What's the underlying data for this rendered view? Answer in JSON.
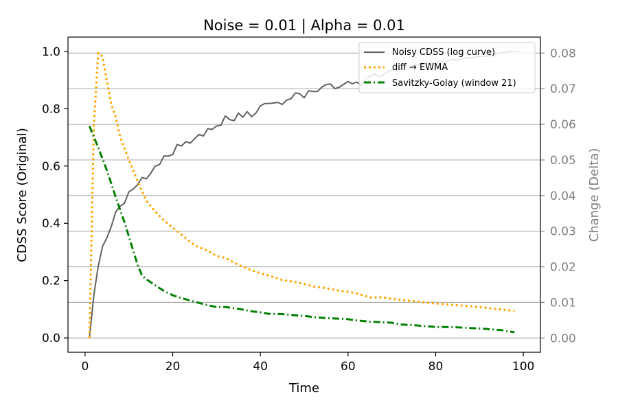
{
  "chart_data": {
    "type": "line",
    "title": "Noise = 0.01 | Alpha = 0.01",
    "xlabel": "Time",
    "ylabel_left": "CDSS Score (Original)",
    "ylabel_right": "Change (Delta)",
    "xlim": [
      -3.9,
      103.9
    ],
    "ylim_left": [
      -0.05,
      1.05
    ],
    "ylim_right": [
      -0.004,
      0.0845
    ],
    "xticks": [
      0,
      20,
      40,
      60,
      80,
      100
    ],
    "yticks_left": [
      0.0,
      0.2,
      0.4,
      0.6,
      0.8,
      1.0
    ],
    "yticks_right": [
      0.0,
      0.01,
      0.02,
      0.03,
      0.04,
      0.05,
      0.06,
      0.07,
      0.08
    ],
    "grid": "horizontal lines at right-axis ticks",
    "legend_position": "top-right",
    "colors": {
      "left_axis": "#000000",
      "right_axis": "#808080"
    },
    "series": [
      {
        "name": "Noisy CDSS (log curve)",
        "axis": "left",
        "style": "solid",
        "color": "#606060",
        "x": [
          1,
          2,
          3,
          4,
          5,
          6,
          7,
          8,
          9,
          10,
          11,
          12,
          13,
          14,
          15,
          16,
          17,
          18,
          19,
          20,
          21,
          22,
          23,
          24,
          25,
          26,
          27,
          28,
          29,
          30,
          31,
          32,
          33,
          34,
          35,
          36,
          37,
          38,
          39,
          40,
          41,
          42,
          43,
          44,
          45,
          46,
          47,
          48,
          49,
          50,
          51,
          52,
          53,
          54,
          55,
          56,
          57,
          58,
          59,
          60,
          61,
          62,
          63,
          64,
          65,
          66,
          67,
          68,
          69,
          70,
          71,
          72,
          73,
          74,
          75,
          76,
          77,
          78,
          79,
          80,
          81,
          82,
          83,
          84,
          85,
          86,
          87,
          88,
          89,
          90,
          91,
          92,
          93,
          94,
          95,
          96,
          97,
          98,
          99
        ],
        "y": [
          0.0,
          0.15,
          0.25,
          0.32,
          0.35,
          0.39,
          0.44,
          0.46,
          0.47,
          0.51,
          0.52,
          0.535,
          0.56,
          0.555,
          0.575,
          0.6,
          0.605,
          0.635,
          0.635,
          0.64,
          0.675,
          0.67,
          0.685,
          0.68,
          0.695,
          0.71,
          0.705,
          0.73,
          0.728,
          0.74,
          0.742,
          0.775,
          0.762,
          0.758,
          0.785,
          0.77,
          0.79,
          0.772,
          0.785,
          0.81,
          0.818,
          0.818,
          0.82,
          0.822,
          0.815,
          0.83,
          0.835,
          0.855,
          0.852,
          0.838,
          0.862,
          0.86,
          0.86,
          0.875,
          0.884,
          0.886,
          0.87,
          0.875,
          0.885,
          0.895,
          0.887,
          0.893,
          0.88,
          0.905,
          0.912,
          0.922,
          0.912,
          0.918,
          0.928,
          0.935,
          0.93,
          0.94,
          0.945,
          0.938,
          0.95,
          0.955,
          0.953,
          0.96,
          0.957,
          0.96,
          0.965,
          0.962,
          0.968,
          0.972,
          0.97,
          0.975,
          0.978,
          0.975,
          0.98,
          0.983,
          0.982,
          0.985,
          0.988,
          0.992,
          0.995,
          0.998,
          1.0,
          1.0,
          1.0
        ]
      },
      {
        "name": "diff → EWMA",
        "axis": "right",
        "style": "dotted",
        "color": "#ffa500",
        "x": [
          1,
          2,
          3,
          4,
          5,
          6,
          7,
          8,
          10,
          12,
          14,
          16,
          18,
          20,
          22,
          25,
          28,
          30,
          32,
          35,
          38,
          40,
          42,
          45,
          48,
          50,
          52,
          55,
          58,
          60,
          62,
          65,
          68,
          70,
          72,
          75,
          78,
          80,
          82,
          85,
          88,
          90,
          92,
          95,
          98
        ],
        "y": [
          0.0,
          0.06,
          0.08,
          0.079,
          0.072,
          0.0655,
          0.062,
          0.0565,
          0.05,
          0.044,
          0.0385,
          0.0355,
          0.033,
          0.031,
          0.029,
          0.026,
          0.0245,
          0.023,
          0.0225,
          0.0205,
          0.019,
          0.0182,
          0.0175,
          0.0163,
          0.0157,
          0.0152,
          0.0145,
          0.014,
          0.0133,
          0.013,
          0.0125,
          0.0114,
          0.0114,
          0.011,
          0.0107,
          0.0104,
          0.0099,
          0.0097,
          0.0095,
          0.0092,
          0.0089,
          0.0087,
          0.0084,
          0.008,
          0.0076
        ]
      },
      {
        "name": "Savitzky-Golay (window 21)",
        "axis": "right",
        "style": "dashdot",
        "color": "#008000",
        "x": [
          1,
          3,
          5,
          7,
          9,
          11,
          12,
          13,
          14,
          16,
          18,
          20,
          22,
          25,
          28,
          30,
          32,
          35,
          38,
          40,
          42,
          45,
          48,
          50,
          52,
          55,
          58,
          60,
          62,
          65,
          68,
          70,
          72,
          75,
          78,
          80,
          82,
          85,
          88,
          90,
          92,
          95,
          98
        ],
        "y": [
          0.0595,
          0.0535,
          0.047,
          0.0395,
          0.0325,
          0.0245,
          0.0205,
          0.0175,
          0.0165,
          0.0148,
          0.0132,
          0.012,
          0.0112,
          0.0102,
          0.0092,
          0.0087,
          0.0087,
          0.0082,
          0.0075,
          0.0072,
          0.0068,
          0.0067,
          0.0064,
          0.0062,
          0.0059,
          0.0056,
          0.0054,
          0.0053,
          0.0049,
          0.0046,
          0.0044,
          0.0043,
          0.0038,
          0.0036,
          0.0033,
          0.0031,
          0.0031,
          0.003,
          0.0028,
          0.0027,
          0.0025,
          0.0022,
          0.0016
        ]
      }
    ]
  }
}
